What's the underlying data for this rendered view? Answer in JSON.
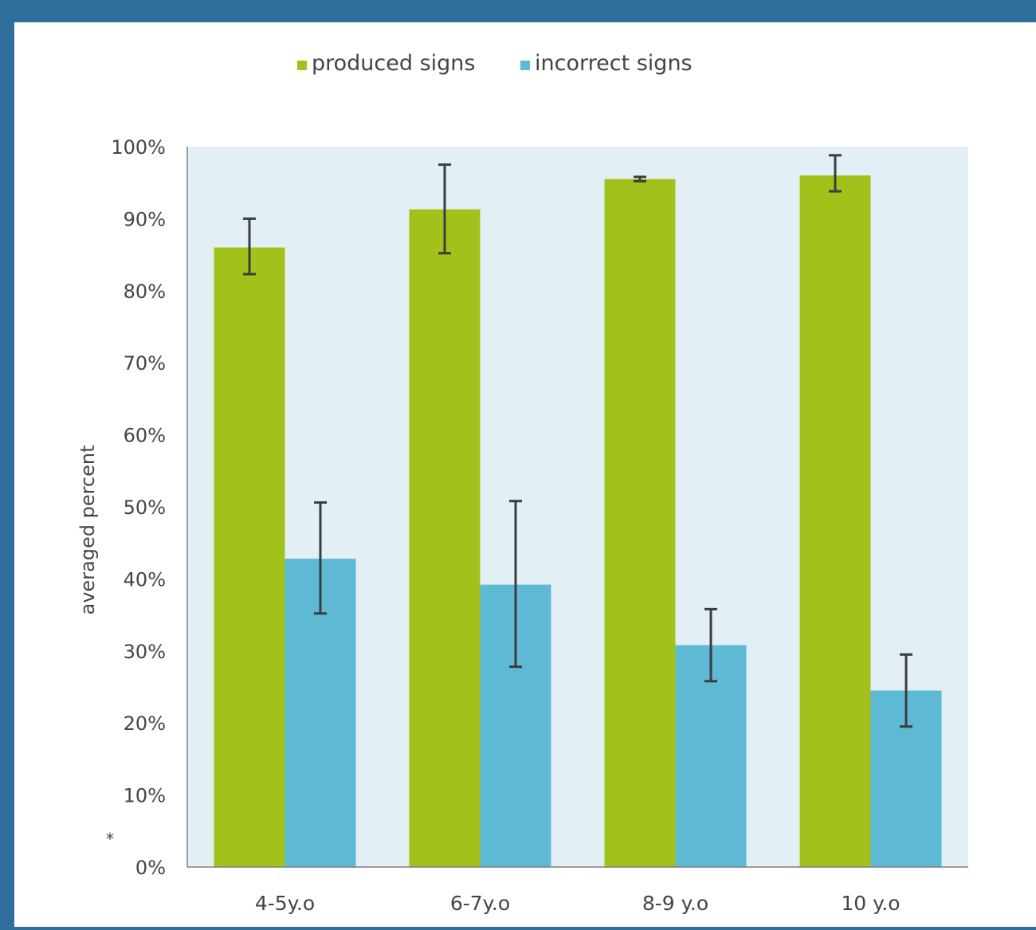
{
  "colors": {
    "page_border": "#2e6f9e",
    "plot_background": "#e2f0f6",
    "axis": "#7f7f7f",
    "error_bar": "#3c3c3c"
  },
  "chart_data": {
    "type": "bar",
    "title": "",
    "xlabel": "",
    "ylabel": "averaged percent",
    "ylim": [
      0,
      100
    ],
    "y_tick_labels": [
      "0%",
      "10%",
      "20%",
      "30%",
      "40%",
      "50%",
      "60%",
      "70%",
      "80%",
      "90%",
      "100%"
    ],
    "categories": [
      "4-5y.o",
      "6-7y.o",
      "8-9 y.o",
      "10 y.o"
    ],
    "legend_position": "top",
    "grid": false,
    "annotation": "*",
    "series": [
      {
        "name": "produced signs",
        "color": "#a2c11a",
        "values": [
          86,
          91.3,
          95.5,
          96
        ],
        "error_low": [
          82.3,
          85.2,
          95.2,
          93.8
        ],
        "error_high": [
          90,
          97.5,
          95.8,
          98.8
        ]
      },
      {
        "name": "incorrect signs",
        "color": "#5db9d4",
        "values": [
          42.8,
          39.2,
          30.8,
          24.5
        ],
        "error_low": [
          35.2,
          27.8,
          25.8,
          19.5
        ],
        "error_high": [
          50.6,
          50.8,
          35.8,
          29.5
        ]
      }
    ]
  }
}
